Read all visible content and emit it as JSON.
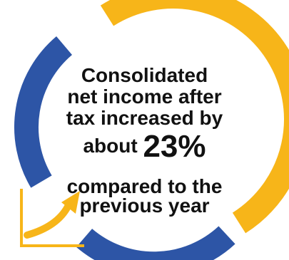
{
  "headline": {
    "line1": "Consolidated",
    "line2": "net income after",
    "line3": "tax increased by",
    "line4_prefix": "about ",
    "line4_value": "23%",
    "line5": "compared to the",
    "line6": "previous year"
  },
  "colors": {
    "ring_primary": "#F7B519",
    "ring_secondary": "#2D55A6",
    "text": "#111111"
  },
  "icons": [
    "growth-arrow-icon"
  ]
}
